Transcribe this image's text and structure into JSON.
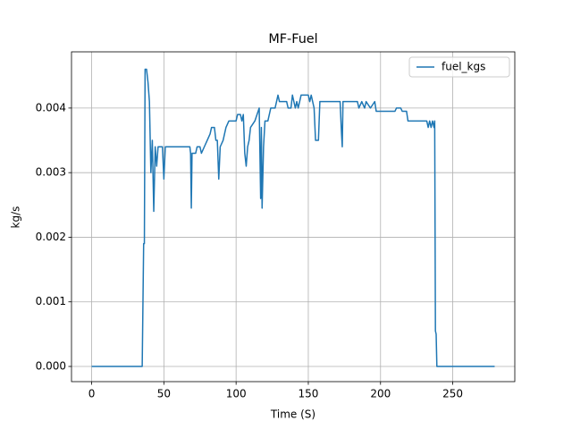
{
  "chart_data": {
    "type": "line",
    "title": "MF-Fuel",
    "x_label": "Time (S)",
    "y_label": "kg/s",
    "xlim": [
      -13.95,
      292.95
    ],
    "ylim": [
      -0.000235,
      0.00487
    ],
    "xticks": [
      0,
      50,
      100,
      150,
      200,
      250
    ],
    "yticks": [
      {
        "value": 0,
        "label": "0.000"
      },
      {
        "value": 0.001,
        "label": "0.001"
      },
      {
        "value": 0.002,
        "label": "0.002"
      },
      {
        "value": 0.003,
        "label": "0.003"
      },
      {
        "value": 0.004,
        "label": "0.004"
      }
    ],
    "grid": true,
    "legend": "upper right",
    "x": [
      0,
      35,
      36,
      36.5,
      37,
      38,
      39,
      40,
      41,
      42,
      43,
      44,
      45,
      46,
      49,
      50,
      51,
      68,
      68.5,
      69,
      69.5,
      72,
      73,
      75,
      76,
      78,
      80,
      82,
      83,
      85,
      86,
      87,
      88,
      89,
      91,
      93,
      95,
      100,
      101,
      103,
      104,
      105,
      106,
      107,
      108,
      109,
      110,
      113,
      116,
      117,
      117.5,
      118,
      119,
      120,
      122,
      124,
      127,
      128,
      129,
      130,
      135,
      136,
      138,
      139,
      141,
      142,
      143,
      144,
      145,
      150,
      151,
      152,
      154,
      155,
      157,
      158,
      172,
      173,
      173.5,
      174,
      184,
      185,
      187,
      189,
      190,
      193,
      196,
      197,
      210,
      211,
      214,
      215,
      218,
      219,
      232,
      233,
      234,
      235,
      236,
      237,
      237.5,
      238,
      238.5,
      239,
      279
    ],
    "series": [
      {
        "name": "fuel_kgs",
        "color": "#1f77b4",
        "values": [
          0,
          0,
          0.0019,
          0.0019,
          0.0046,
          0.0046,
          0.0044,
          0.0041,
          0.003,
          0.0035,
          0.0024,
          0.0034,
          0.0031,
          0.0034,
          0.0034,
          0.0029,
          0.0034,
          0.0034,
          0.0033,
          0.00245,
          0.0033,
          0.0033,
          0.0034,
          0.0034,
          0.0033,
          0.0034,
          0.0035,
          0.0036,
          0.0037,
          0.0037,
          0.0035,
          0.0035,
          0.0029,
          0.0034,
          0.0035,
          0.0037,
          0.0038,
          0.0038,
          0.0039,
          0.0039,
          0.0038,
          0.0039,
          0.0033,
          0.0031,
          0.0034,
          0.0035,
          0.0037,
          0.0038,
          0.004,
          0.0026,
          0.0037,
          0.00245,
          0.0034,
          0.0038,
          0.0038,
          0.004,
          0.004,
          0.0041,
          0.0042,
          0.0041,
          0.0041,
          0.004,
          0.004,
          0.0042,
          0.004,
          0.0041,
          0.004,
          0.0041,
          0.0042,
          0.0042,
          0.0041,
          0.0042,
          0.004,
          0.0035,
          0.0035,
          0.0041,
          0.0041,
          0.0036,
          0.0034,
          0.0041,
          0.0041,
          0.004,
          0.0041,
          0.004,
          0.0041,
          0.004,
          0.0041,
          0.00395,
          0.00395,
          0.004,
          0.004,
          0.00395,
          0.00395,
          0.0038,
          0.0038,
          0.0037,
          0.0038,
          0.0037,
          0.0038,
          0.0037,
          0.0038,
          0.00055,
          0.0005,
          0,
          0
        ]
      }
    ]
  }
}
